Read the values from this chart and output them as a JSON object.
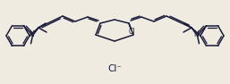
{
  "bg_color": "#f0ebe0",
  "bond_color": "#1a1a3a",
  "text_color": "#1a1a3a",
  "figsize": [
    2.57,
    0.94
  ],
  "dpi": 100,
  "linewidth": 1.1,
  "font_size": 6.0,
  "cl_minus": "Cl⁻"
}
